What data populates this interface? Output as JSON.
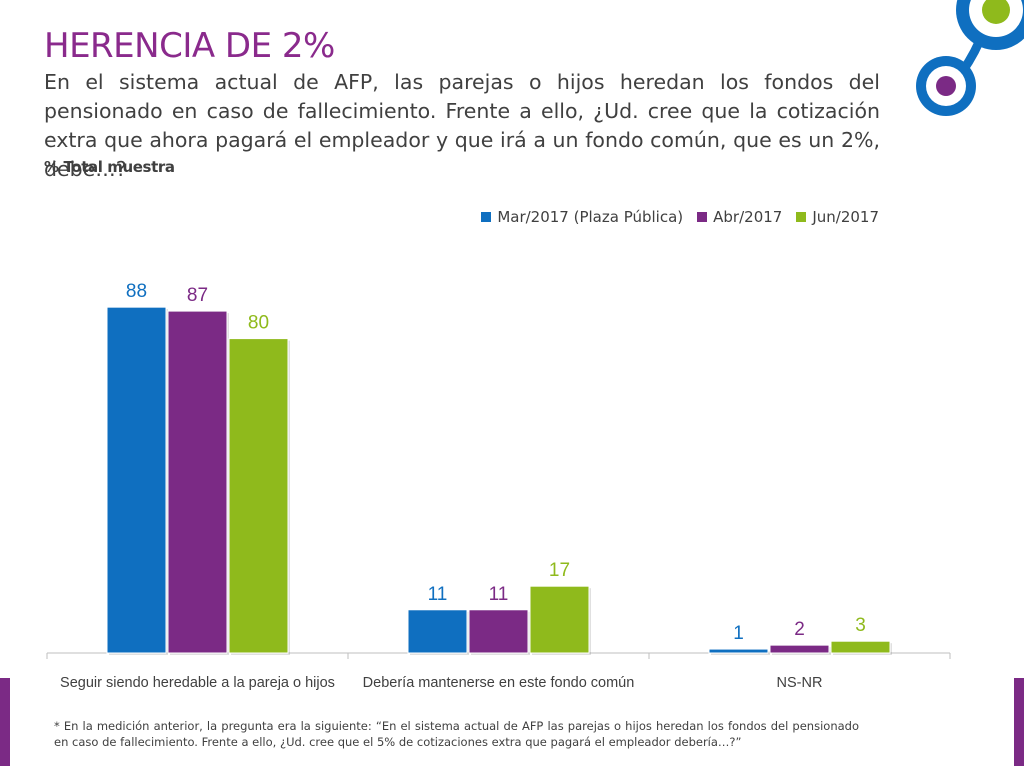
{
  "header": {
    "title": "HERENCIA DE 2%",
    "question": "En el sistema actual de AFP, las parejas o hijos heredan los fondos del pensionado en caso de fallecimiento. Frente a ello, ¿Ud. cree que la cotización extra que ahora pagará el empleador y que irá a un fondo común, que es un 2%, debe…?",
    "sample_label": "% Total muestra"
  },
  "chart_data": {
    "type": "bar",
    "title": "",
    "xlabel": "",
    "ylabel": "",
    "categories": [
      "Seguir siendo heredable a la pareja o hijos",
      "Debería mantenerse en este fondo común",
      "NS-NR"
    ],
    "series": [
      {
        "name": "Mar/2017 (Plaza Pública)",
        "values": [
          88,
          11,
          1
        ],
        "color": "#0f6fc0"
      },
      {
        "name": "Abr/2017",
        "values": [
          87,
          11,
          2
        ],
        "color": "#7b2a85"
      },
      {
        "name": "Jun/2017",
        "values": [
          80,
          17,
          3
        ],
        "color": "#8fba1c"
      }
    ],
    "ylim": [
      0,
      100
    ],
    "grid": false,
    "legend_position": "top-right",
    "data_labels": true
  },
  "footnote": "* En la medición anterior, la pregunta era la siguiente: “En el sistema actual de AFP las parejas o hijos heredan los fondos del pensionado en caso de fallecimiento. Frente a ello, ¿Ud. cree que el 5% de cotizaciones extra que pagará el empleador debería…?”",
  "colors": {
    "title": "#8a2a8c",
    "decor_blue": "#0f6fc0",
    "decor_purple": "#7b2a85",
    "decor_green": "#8fba1c"
  }
}
